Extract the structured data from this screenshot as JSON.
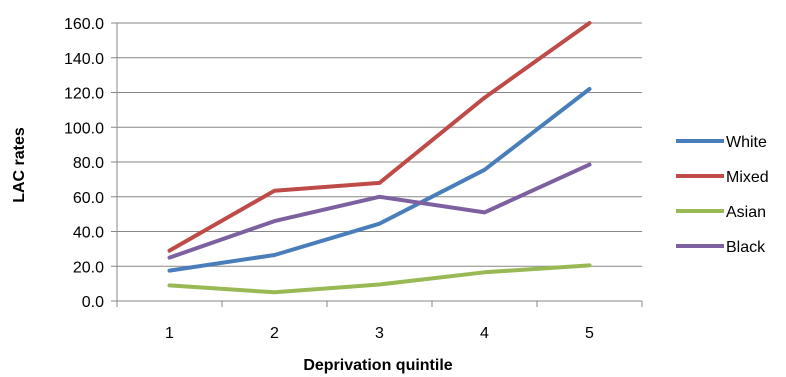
{
  "chart_data": {
    "type": "line",
    "title": "",
    "xlabel": "Deprivation quintile",
    "ylabel": "LAC rates",
    "x": [
      "1",
      "2",
      "3",
      "4",
      "5"
    ],
    "ylim": [
      0,
      160
    ],
    "y_ticks": [
      "0.0",
      "20.0",
      "40.0",
      "60.0",
      "80.0",
      "100.0",
      "120.0",
      "140.0",
      "160.0"
    ],
    "y_tick_values": [
      0,
      20,
      40,
      60,
      80,
      100,
      120,
      140,
      160
    ],
    "grid": true,
    "legend_position": "right",
    "series": [
      {
        "name": "White",
        "color": "#4A7EBB",
        "values": [
          17.5,
          26.5,
          44.5,
          75.5,
          122.0
        ]
      },
      {
        "name": "Mixed",
        "color": "#BE4B48",
        "values": [
          29.0,
          63.5,
          68.0,
          117.0,
          160.0
        ]
      },
      {
        "name": "Asian",
        "color": "#98B954",
        "values": [
          9.0,
          5.0,
          9.5,
          16.5,
          20.5
        ]
      },
      {
        "name": "Black",
        "color": "#7D60A0",
        "values": [
          25.0,
          46.0,
          60.0,
          51.0,
          78.5
        ]
      }
    ]
  }
}
